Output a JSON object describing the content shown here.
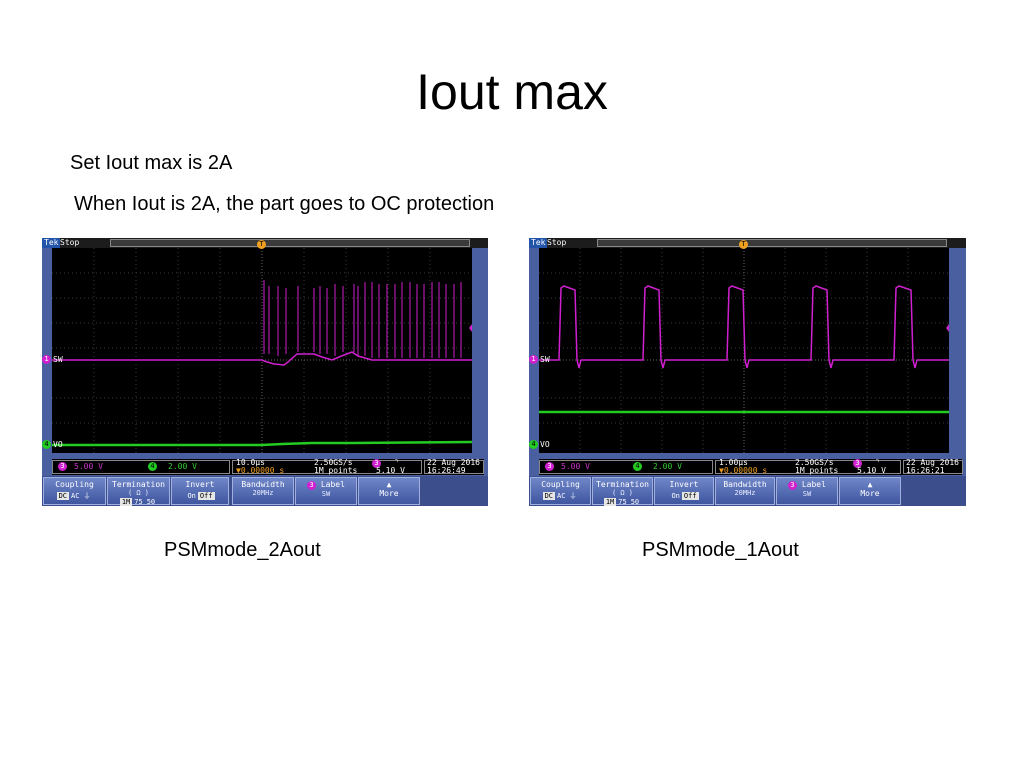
{
  "slide": {
    "title": "Iout max",
    "bullets": [
      "Set Iout max is 2A",
      "When Iout is 2A, the part goes to OC protection"
    ]
  },
  "scopes": [
    {
      "caption": "PSMmode_2Aout",
      "brand": "Tek",
      "state": "Stop",
      "trigger_marker": "T",
      "ch1_marker": "1",
      "ch1_label": "SW",
      "ch4_marker": "4",
      "ch4_label": "VO",
      "ch3_scale": "5.00 V",
      "ch4_scale": "2.00 V",
      "ch_ind_3": "3",
      "ch_ind_4": "4",
      "timebase": "10.0µs",
      "delay": "▼0.00000 s",
      "sample_rate": "2.50GS/s",
      "record_length": "1M points",
      "trigger_source": "3",
      "trigger_slope": "⌝",
      "trigger_level": "5.10 V",
      "date": "22 Aug 2016",
      "time": "16:26:49",
      "menu": {
        "coupling": "Coupling",
        "coupling_opts": [
          "DC",
          "AC",
          "⏚"
        ],
        "termination": "Termination",
        "termination_unit": "( Ω )",
        "termination_opts": [
          "1M",
          "75",
          "50"
        ],
        "invert": "Invert",
        "invert_opts": [
          "On",
          "Off"
        ],
        "bandwidth": "Bandwidth",
        "bandwidth_val": "20MHz",
        "label": "Label",
        "label_val": "SW",
        "label_ch": "3",
        "more": "More"
      }
    },
    {
      "caption": "PSMmode_1Aout",
      "brand": "Tek",
      "state": "Stop",
      "trigger_marker": "T",
      "ch1_marker": "1",
      "ch1_label": "SW",
      "ch4_marker": "4",
      "ch4_label": "VO",
      "ch3_scale": "5.00 V",
      "ch4_scale": "2.00 V",
      "ch_ind_3": "3",
      "ch_ind_4": "4",
      "timebase": "1.00µs",
      "delay": "▼0.00000 s",
      "sample_rate": "2.50GS/s",
      "record_length": "1M points",
      "trigger_source": "3",
      "trigger_slope": "⌝",
      "trigger_level": "5.10 V",
      "date": "22 Aug 2016",
      "time": "16:26:21",
      "menu": {
        "coupling": "Coupling",
        "coupling_opts": [
          "DC",
          "AC",
          "⏚"
        ],
        "termination": "Termination",
        "termination_unit": "( Ω )",
        "termination_opts": [
          "1M",
          "75",
          "50"
        ],
        "invert": "Invert",
        "invert_opts": [
          "On",
          "Off"
        ],
        "bandwidth": "Bandwidth",
        "bandwidth_val": "20MHz",
        "label": "Label",
        "label_val": "SW",
        "label_ch": "3",
        "more": "More"
      }
    }
  ],
  "colors": {
    "sw_trace": "#d020d0",
    "vo_trace": "#22cc22",
    "grid": "#444444",
    "menu": "#4a5fa0"
  }
}
